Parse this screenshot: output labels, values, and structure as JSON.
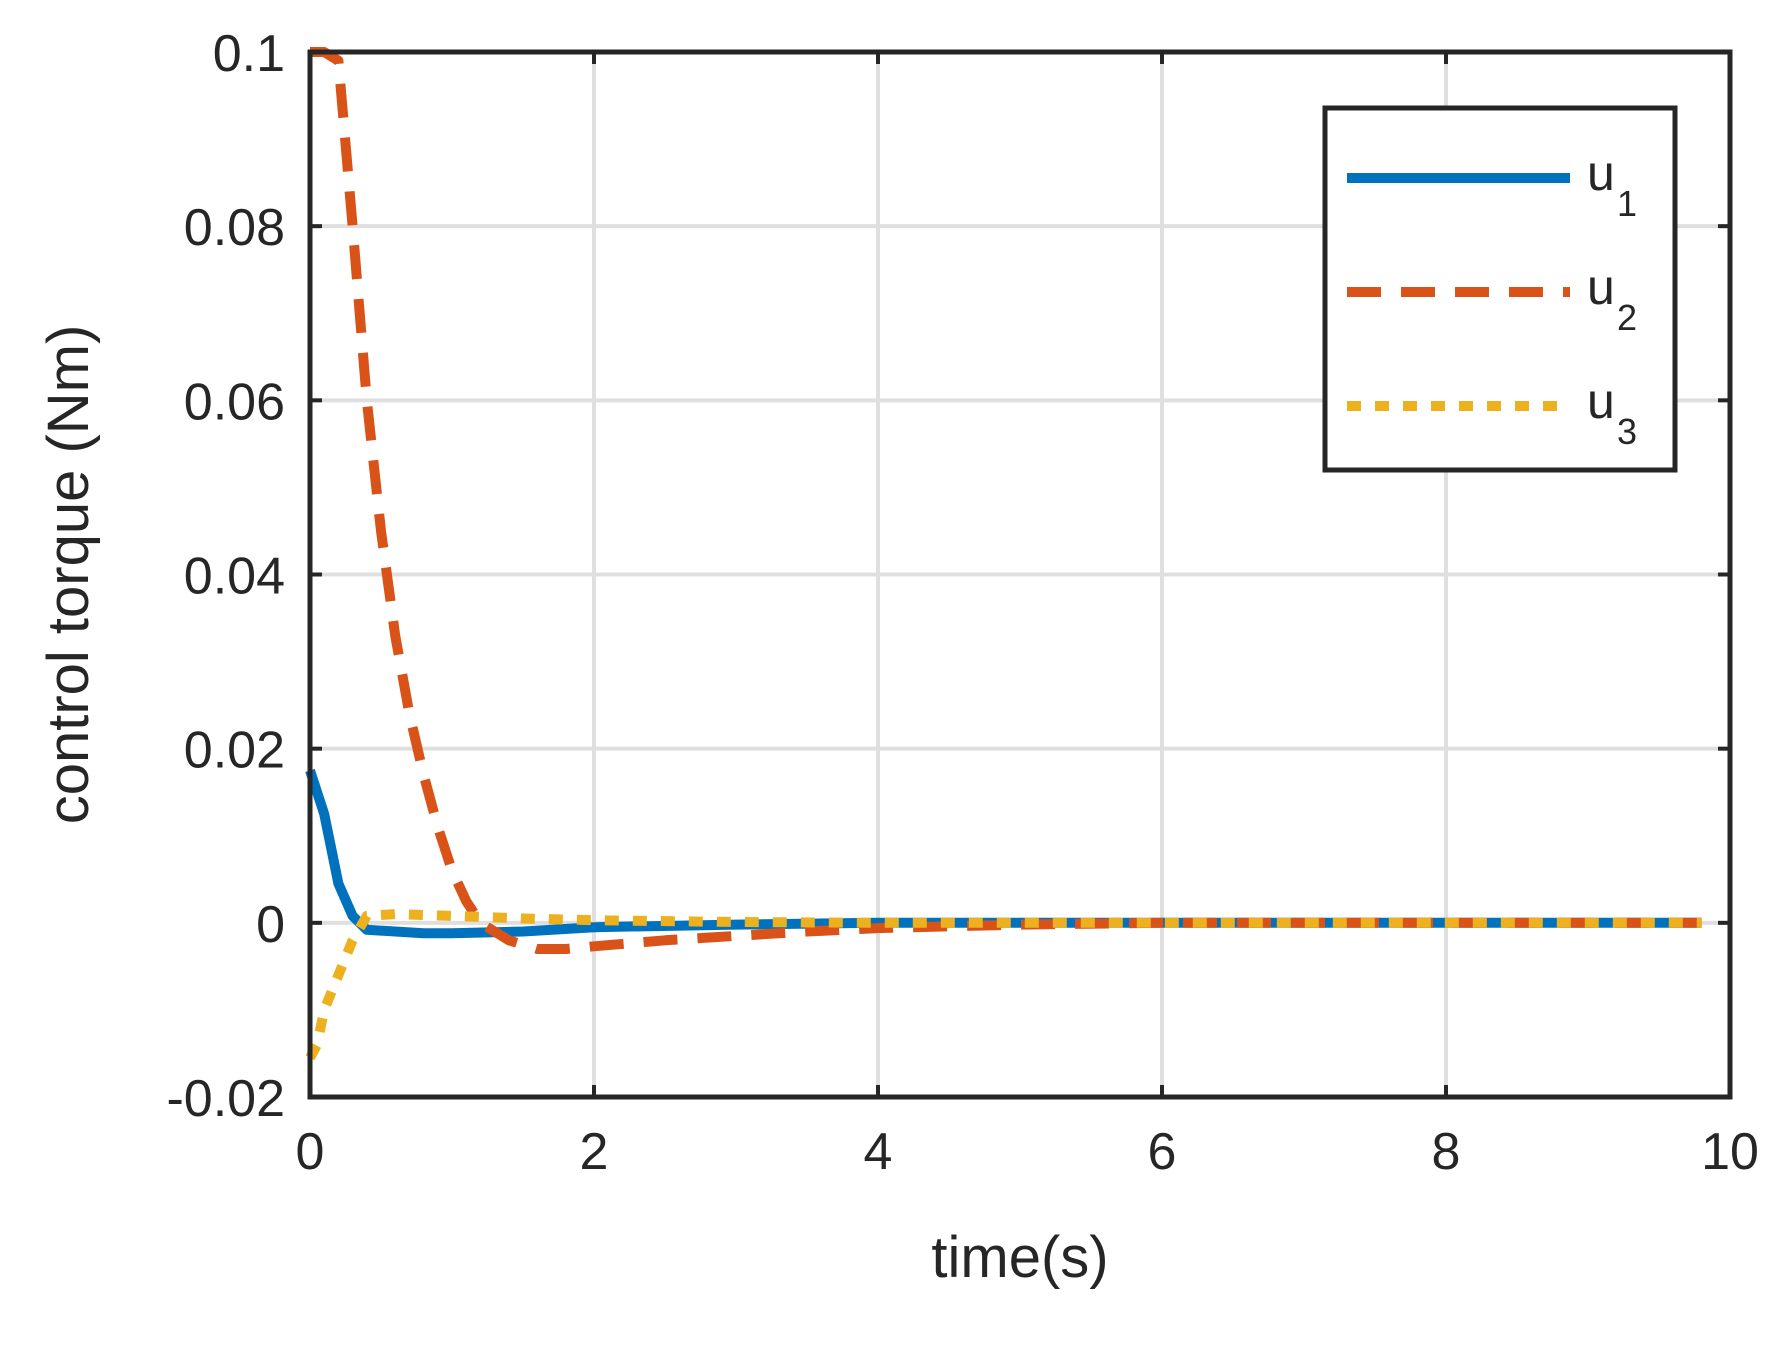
{
  "chart_data": {
    "type": "line",
    "xlabel": "time(s)",
    "ylabel": "control torque (Nm)",
    "xlim": [
      0,
      10
    ],
    "ylim": [
      -0.02,
      0.1
    ],
    "xticks": [
      0,
      2,
      4,
      6,
      8,
      10
    ],
    "xtick_labels": [
      "0",
      "2",
      "4",
      "6",
      "8",
      "10"
    ],
    "yticks": [
      -0.02,
      0,
      0.02,
      0.04,
      0.06,
      0.08,
      0.1
    ],
    "ytick_labels": [
      "-0.02",
      "0",
      "0.02",
      "0.04",
      "0.06",
      "0.08",
      "0.1"
    ],
    "grid": true,
    "legend_position": "top-right",
    "series": [
      {
        "name": "u",
        "subscript": "1",
        "color": "#0072BD",
        "style": "solid",
        "points": [
          [
            0,
            0.0175
          ],
          [
            0.1,
            0.0125
          ],
          [
            0.2,
            0.0045
          ],
          [
            0.3,
            0.0008
          ],
          [
            0.4,
            -0.0008
          ],
          [
            0.6,
            -0.001
          ],
          [
            0.8,
            -0.0012
          ],
          [
            1.0,
            -0.0012
          ],
          [
            1.5,
            -0.001
          ],
          [
            2.0,
            -0.0005
          ],
          [
            3.0,
            -0.0002
          ],
          [
            4.0,
            0.0
          ],
          [
            6.0,
            0.0
          ],
          [
            8.0,
            0.0
          ],
          [
            9.8,
            0.0
          ]
        ]
      },
      {
        "name": "u",
        "subscript": "2",
        "color": "#D95319",
        "style": "dashed",
        "points": [
          [
            0,
            0.1
          ],
          [
            0.1,
            0.1
          ],
          [
            0.2,
            0.099
          ],
          [
            0.3,
            0.08
          ],
          [
            0.4,
            0.06
          ],
          [
            0.5,
            0.045
          ],
          [
            0.6,
            0.033
          ],
          [
            0.7,
            0.024
          ],
          [
            0.8,
            0.017
          ],
          [
            0.9,
            0.011
          ],
          [
            1.0,
            0.006
          ],
          [
            1.1,
            0.0025
          ],
          [
            1.2,
            0.0
          ],
          [
            1.4,
            -0.002
          ],
          [
            1.6,
            -0.003
          ],
          [
            1.8,
            -0.003
          ],
          [
            2.0,
            -0.0027
          ],
          [
            2.5,
            -0.002
          ],
          [
            3.0,
            -0.0015
          ],
          [
            3.5,
            -0.001
          ],
          [
            4.0,
            -0.0006
          ],
          [
            5.0,
            -0.0002
          ],
          [
            6.0,
            0.0
          ],
          [
            8.0,
            0.0
          ],
          [
            9.8,
            0.0
          ]
        ]
      },
      {
        "name": "u",
        "subscript": "3",
        "color": "#EDB120",
        "style": "dotted",
        "points": [
          [
            0,
            -0.0155
          ],
          [
            0.05,
            -0.014
          ],
          [
            0.1,
            -0.01
          ],
          [
            0.2,
            -0.006
          ],
          [
            0.3,
            -0.002
          ],
          [
            0.4,
            0.0008
          ],
          [
            0.6,
            0.001
          ],
          [
            1.0,
            0.0008
          ],
          [
            1.5,
            0.0005
          ],
          [
            2.0,
            0.0003
          ],
          [
            3.0,
            0.0001
          ],
          [
            4.0,
            0.0
          ],
          [
            6.0,
            0.0
          ],
          [
            8.0,
            0.0
          ],
          [
            9.8,
            0.0
          ]
        ]
      }
    ]
  }
}
